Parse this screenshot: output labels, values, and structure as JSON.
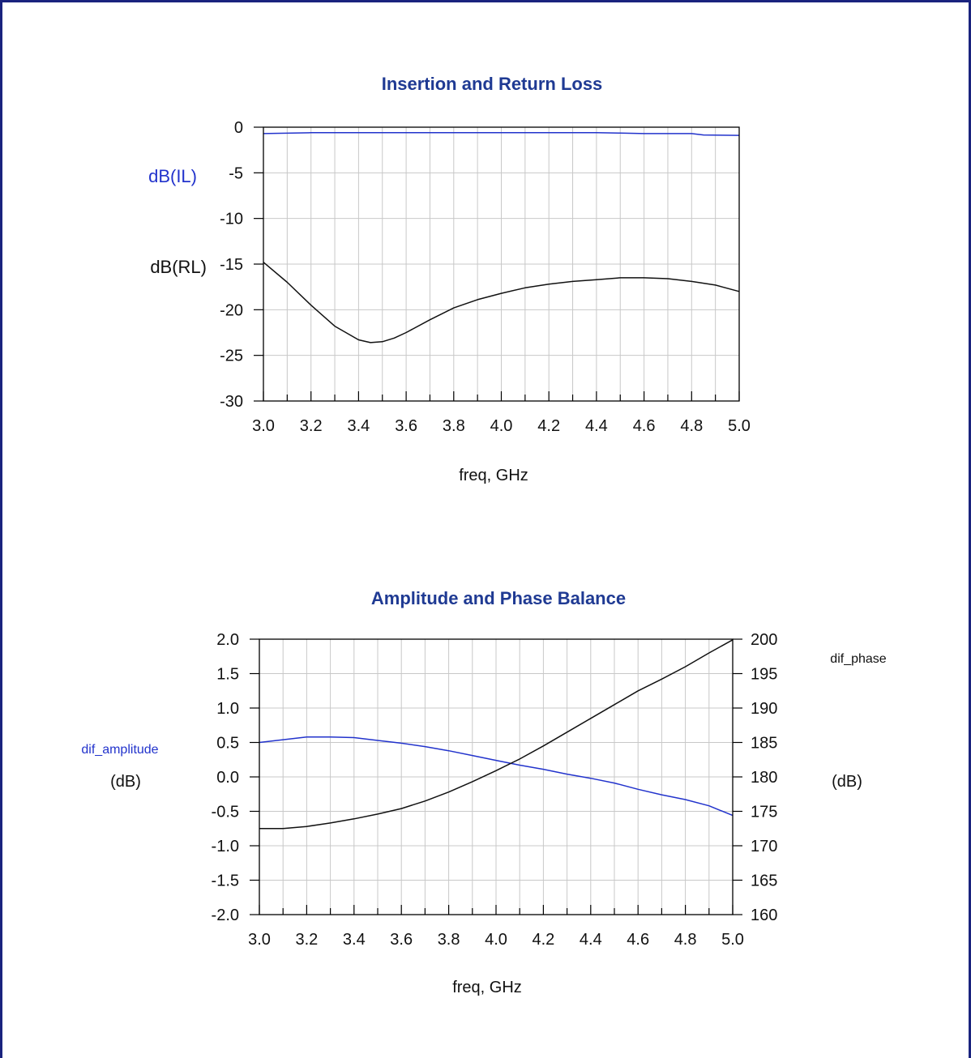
{
  "colors": {
    "border": "#1a237e",
    "title": "#1f3a93",
    "blue_trace": "#2233cc",
    "black_trace": "#111111",
    "grid": "#c8c8c8"
  },
  "chart_data": [
    {
      "type": "line",
      "title": "Insertion and Return Loss",
      "xlabel": "freq, GHz",
      "xlim": [
        3.0,
        5.0
      ],
      "ylim": [
        -30,
        0
      ],
      "x_ticks": [
        3.0,
        3.2,
        3.4,
        3.6,
        3.8,
        4.0,
        4.2,
        4.4,
        4.6,
        4.8,
        5.0
      ],
      "x_tick_labels": [
        "3.0",
        "3.2",
        "3.4",
        "3.6",
        "3.8",
        "4.0",
        "4.2",
        "4.4",
        "4.6",
        "4.8",
        "5.0"
      ],
      "y_ticks": [
        0,
        -5,
        -10,
        -15,
        -20,
        -25,
        -30
      ],
      "y_tick_labels": [
        "0",
        "-5",
        "-10",
        "-15",
        "-20",
        "-25",
        "-30"
      ],
      "grid": true,
      "series": [
        {
          "name": "dB(IL)",
          "color": "blue",
          "x": [
            3.0,
            3.2,
            3.4,
            3.6,
            3.8,
            4.0,
            4.2,
            4.4,
            4.5,
            4.6,
            4.8,
            4.85,
            5.0
          ],
          "y": [
            -0.7,
            -0.6,
            -0.6,
            -0.6,
            -0.6,
            -0.6,
            -0.6,
            -0.6,
            -0.65,
            -0.7,
            -0.7,
            -0.85,
            -0.9
          ]
        },
        {
          "name": "dB(RL)",
          "color": "black",
          "x": [
            3.0,
            3.1,
            3.2,
            3.3,
            3.4,
            3.45,
            3.5,
            3.55,
            3.6,
            3.7,
            3.8,
            3.9,
            4.0,
            4.1,
            4.2,
            4.3,
            4.4,
            4.5,
            4.6,
            4.7,
            4.8,
            4.9,
            5.0
          ],
          "y": [
            -14.8,
            -17.0,
            -19.5,
            -21.8,
            -23.3,
            -23.6,
            -23.5,
            -23.1,
            -22.5,
            -21.1,
            -19.8,
            -18.9,
            -18.2,
            -17.6,
            -17.2,
            -16.9,
            -16.7,
            -16.5,
            -16.5,
            -16.6,
            -16.9,
            -17.3,
            -18.0
          ]
        }
      ]
    },
    {
      "type": "line",
      "title": "Amplitude and Phase Balance",
      "xlabel": "freq, GHz",
      "xlim": [
        3.0,
        5.0
      ],
      "ylim": [
        -2.0,
        2.0
      ],
      "y2lim": [
        160,
        200
      ],
      "x_ticks": [
        3.0,
        3.2,
        3.4,
        3.6,
        3.8,
        4.0,
        4.2,
        4.4,
        4.6,
        4.8,
        5.0
      ],
      "x_tick_labels": [
        "3.0",
        "3.2",
        "3.4",
        "3.6",
        "3.8",
        "4.0",
        "4.2",
        "4.4",
        "4.6",
        "4.8",
        "5.0"
      ],
      "y_ticks": [
        2.0,
        1.5,
        1.0,
        0.5,
        0.0,
        -0.5,
        -1.0,
        -1.5,
        -2.0
      ],
      "y_tick_labels": [
        "2.0",
        "1.5",
        "1.0",
        "0.5",
        "0.0",
        "-0.5",
        "-1.0",
        "-1.5",
        "-2.0"
      ],
      "y2_ticks": [
        200,
        195,
        190,
        185,
        180,
        175,
        170,
        165,
        160
      ],
      "y2_tick_labels": [
        "200",
        "195",
        "190",
        "185",
        "180",
        "175",
        "170",
        "165",
        "160"
      ],
      "grid": true,
      "series": [
        {
          "name": "dif_amplitude",
          "color": "blue",
          "axis": "left",
          "unit": "(dB)",
          "x": [
            3.0,
            3.1,
            3.2,
            3.3,
            3.4,
            3.5,
            3.6,
            3.7,
            3.8,
            3.9,
            4.0,
            4.1,
            4.2,
            4.3,
            4.4,
            4.5,
            4.6,
            4.7,
            4.8,
            4.9,
            5.0
          ],
          "y": [
            0.5,
            0.54,
            0.58,
            0.58,
            0.57,
            0.53,
            0.49,
            0.44,
            0.38,
            0.31,
            0.24,
            0.17,
            0.11,
            0.04,
            -0.02,
            -0.09,
            -0.18,
            -0.26,
            -0.33,
            -0.42,
            -0.56
          ]
        },
        {
          "name": "dif_phase",
          "color": "black",
          "axis": "right",
          "unit": "(dB)",
          "x": [
            3.0,
            3.1,
            3.2,
            3.3,
            3.4,
            3.5,
            3.6,
            3.7,
            3.8,
            3.9,
            4.0,
            4.1,
            4.2,
            4.3,
            4.4,
            4.5,
            4.6,
            4.7,
            4.8,
            4.9,
            5.0
          ],
          "y": [
            172.5,
            172.5,
            172.8,
            173.3,
            173.9,
            174.6,
            175.4,
            176.5,
            177.8,
            179.3,
            180.9,
            182.6,
            184.5,
            186.5,
            188.5,
            190.5,
            192.5,
            194.2,
            196.0,
            198.0,
            199.9
          ]
        }
      ]
    }
  ]
}
